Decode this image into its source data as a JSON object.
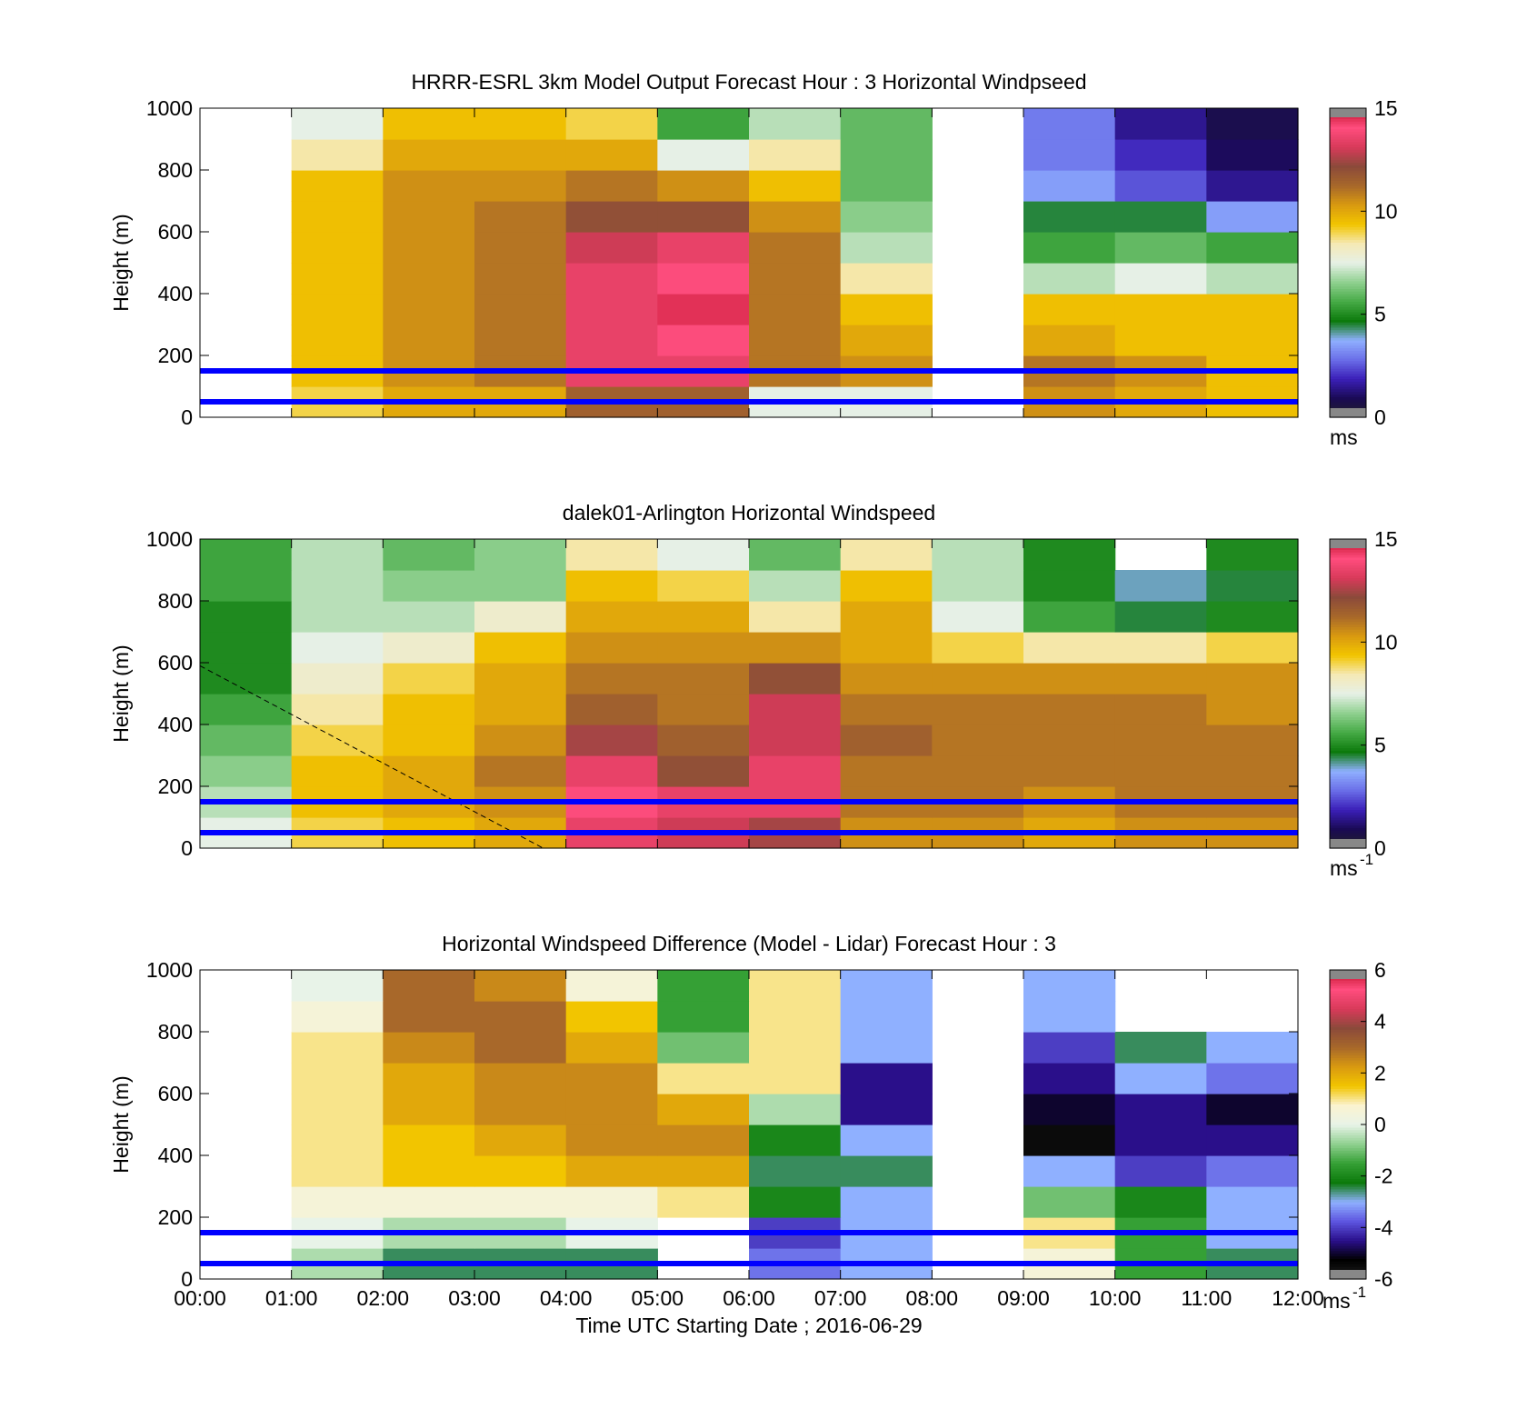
{
  "figure": {
    "xlabel": "Time UTC  Starting Date ; 2016-06-29",
    "x_tick_labels": [
      "00:00",
      "01:00",
      "02:00",
      "03:00",
      "04:00",
      "05:00",
      "06:00",
      "07:00",
      "08:00",
      "09:00",
      "10:00",
      "11:00",
      "12:00"
    ]
  },
  "colors": {
    "reference_lines": "#0000ff",
    "colorbar_speed": [
      "#222222",
      "#1a0a55",
      "#3b1fb8",
      "#6a6ee8",
      "#8fb0ff",
      "#0c7a0c",
      "#46aa46",
      "#8fd08f",
      "#e6f0e6",
      "#f5e9b5",
      "#f2c500",
      "#d99a10",
      "#a8682a",
      "#8b4a3a",
      "#d83a5a",
      "#ff4d7e",
      "#c0102a"
    ],
    "colorbar_diff": [
      "#222222",
      "#000000",
      "#2a0f8a",
      "#5d55e0",
      "#8fb0ff",
      "#0c7a0c",
      "#35a035",
      "#8fd08f",
      "#e8f3e8",
      "#fbf3d0",
      "#f2c500",
      "#d99a10",
      "#a8682a",
      "#8b4a3a",
      "#d83a5a",
      "#ff4d7e",
      "#c0102a"
    ]
  },
  "panels": [
    {
      "title": "HRRR-ESRL 3km Model Output   Forecast Hour : 3 Horizontal Windpseed",
      "ylabel": "Height (m)",
      "y_ticks": [
        "0",
        "200",
        "400",
        "600",
        "800",
        "1000"
      ],
      "cbar_ticks": [
        "0",
        "5",
        "10",
        "15"
      ],
      "cbar_unit": "ms",
      "cbar_exp": ""
    },
    {
      "title": "dalek01-Arlington  Horizontal Windspeed",
      "ylabel": "Height (m)",
      "y_ticks": [
        "0",
        "200",
        "400",
        "600",
        "800",
        "1000"
      ],
      "cbar_ticks": [
        "0",
        "5",
        "10",
        "15"
      ],
      "cbar_unit": "ms",
      "cbar_exp": "-1"
    },
    {
      "title": "Horizontal Windspeed Difference (Model - Lidar) Forecast Hour : 3",
      "ylabel": "Height (m)",
      "y_ticks": [
        "0",
        "200",
        "400",
        "600",
        "800",
        "1000"
      ],
      "cbar_ticks": [
        "-6",
        "-4",
        "-2",
        "0",
        "2",
        "4",
        "6"
      ],
      "cbar_unit": "ms",
      "cbar_exp": "-1"
    }
  ],
  "chart_data": [
    {
      "type": "heatmap",
      "title": "HRRR-ESRL 3km Model Output   Forecast Hour : 3 Horizontal Windpseed",
      "ylabel": "Height (m)",
      "xlim": [
        "00:00",
        "12:00"
      ],
      "ylim": [
        0,
        1000
      ],
      "clim": [
        0,
        15
      ],
      "x_hours": [
        0.5,
        1.5,
        2.5,
        3.5,
        4.5,
        5.5,
        6.5,
        7.5,
        8.5,
        9.5,
        10.5,
        11.5
      ],
      "heights": [
        50,
        150,
        250,
        350,
        450,
        550,
        650,
        750,
        850,
        950
      ],
      "values": [
        [
          null,
          9.0,
          10.0,
          10.0,
          11.5,
          11.5,
          7.5,
          7.5,
          null,
          10.5,
          10.0,
          9.5
        ],
        [
          null,
          9.5,
          10.5,
          11.0,
          13.5,
          13.5,
          11.0,
          10.5,
          null,
          11.0,
          10.5,
          9.5
        ],
        [
          null,
          9.5,
          10.5,
          11.0,
          13.5,
          14.0,
          11.0,
          10.0,
          null,
          10.0,
          9.5,
          9.5
        ],
        [
          null,
          9.5,
          10.5,
          11.0,
          13.5,
          14.5,
          11.0,
          9.5,
          null,
          9.5,
          9.5,
          9.5
        ],
        [
          null,
          9.5,
          10.5,
          11.0,
          13.5,
          14.0,
          11.0,
          8.5,
          null,
          7.0,
          7.5,
          7.0
        ],
        [
          null,
          9.5,
          10.5,
          11.0,
          13.0,
          13.5,
          11.0,
          7.0,
          null,
          5.5,
          6.0,
          5.5
        ],
        [
          null,
          9.5,
          10.5,
          11.0,
          12.0,
          12.0,
          10.5,
          6.5,
          null,
          4.5,
          4.5,
          3.5
        ],
        [
          null,
          9.5,
          10.5,
          10.5,
          11.0,
          10.5,
          9.5,
          6.0,
          null,
          3.5,
          2.5,
          1.5
        ],
        [
          null,
          8.5,
          10.0,
          10.0,
          10.0,
          7.5,
          8.5,
          6.0,
          null,
          3.0,
          2.0,
          1.0
        ],
        [
          null,
          7.5,
          9.5,
          9.5,
          9.0,
          5.5,
          7.0,
          6.0,
          null,
          3.0,
          1.5,
          0.8
        ]
      ],
      "hlines": [
        50,
        150
      ]
    },
    {
      "type": "heatmap",
      "title": "dalek01-Arlington  Horizontal Windspeed",
      "ylabel": "Height (m)",
      "xlim": [
        "00:00",
        "12:00"
      ],
      "ylim": [
        0,
        1000
      ],
      "clim": [
        0,
        15
      ],
      "x_hours": [
        0.5,
        1.5,
        2.5,
        3.5,
        4.5,
        5.5,
        6.5,
        7.5,
        8.5,
        9.5,
        10.5,
        11.5
      ],
      "heights": [
        50,
        150,
        250,
        350,
        450,
        550,
        650,
        750,
        850,
        950
      ],
      "values": [
        [
          7.5,
          9.0,
          9.5,
          10.0,
          13.5,
          13.0,
          12.5,
          10.5,
          10.5,
          10.0,
          10.5,
          10.5
        ],
        [
          7.0,
          9.5,
          10.0,
          10.5,
          14.0,
          13.5,
          13.5,
          11.0,
          11.0,
          10.5,
          11.0,
          11.0
        ],
        [
          6.5,
          9.5,
          10.0,
          11.0,
          13.5,
          12.0,
          13.5,
          11.0,
          11.0,
          11.0,
          11.0,
          11.0
        ],
        [
          6.0,
          9.0,
          9.5,
          10.5,
          12.5,
          11.5,
          13.0,
          11.5,
          11.0,
          11.0,
          11.0,
          11.0
        ],
        [
          5.5,
          8.5,
          9.5,
          10.0,
          11.5,
          11.0,
          13.0,
          11.0,
          11.0,
          11.0,
          11.0,
          10.5
        ],
        [
          5.0,
          8.0,
          9.0,
          10.0,
          11.0,
          11.0,
          12.0,
          10.5,
          10.5,
          10.5,
          10.5,
          10.5
        ],
        [
          5.0,
          7.5,
          8.0,
          9.5,
          10.5,
          10.5,
          10.5,
          10.0,
          9.0,
          8.5,
          8.5,
          9.0
        ],
        [
          5.0,
          7.0,
          7.0,
          8.0,
          10.0,
          10.0,
          8.5,
          10.0,
          7.5,
          5.5,
          4.5,
          5.0
        ],
        [
          5.5,
          7.0,
          6.5,
          6.5,
          9.5,
          9.0,
          7.0,
          9.5,
          7.0,
          5.0,
          4.0,
          4.5
        ],
        [
          5.5,
          7.0,
          6.0,
          6.5,
          8.5,
          7.5,
          6.0,
          8.5,
          7.0,
          5.0,
          null,
          5.0
        ]
      ],
      "hlines": [
        50,
        150
      ],
      "dashed_line": {
        "from": [
          0,
          590
        ],
        "to": [
          3.75,
          0
        ]
      }
    },
    {
      "type": "heatmap",
      "title": "Horizontal Windspeed Difference (Model - Lidar) Forecast Hour : 3",
      "xlabel": "Time UTC  Starting Date ; 2016-06-29",
      "ylabel": "Height (m)",
      "xlim": [
        "00:00",
        "12:00"
      ],
      "ylim": [
        0,
        1000
      ],
      "clim": [
        -6,
        6
      ],
      "x_hours": [
        0.5,
        1.5,
        2.5,
        3.5,
        4.5,
        5.5,
        6.5,
        7.5,
        8.5,
        9.5,
        10.5,
        11.5
      ],
      "heights": [
        50,
        150,
        250,
        350,
        450,
        550,
        650,
        750,
        850,
        950
      ],
      "values": [
        [
          null,
          -0.5,
          -2.5,
          -2.5,
          -2.5,
          null,
          -3.5,
          -3.0,
          null,
          0.5,
          -1.5,
          -2.5
        ],
        [
          null,
          0.0,
          -0.5,
          -0.5,
          0.0,
          null,
          -4.0,
          -3.0,
          null,
          1.0,
          -1.5,
          -3.0
        ],
        [
          null,
          0.5,
          0.5,
          0.5,
          0.5,
          1.0,
          -2.0,
          -3.0,
          null,
          -1.0,
          -2.0,
          -3.0
        ],
        [
          null,
          1.0,
          1.5,
          1.5,
          2.0,
          2.0,
          -2.5,
          -2.5,
          null,
          -3.0,
          -4.0,
          -3.5
        ],
        [
          null,
          1.0,
          1.5,
          2.0,
          2.5,
          2.5,
          -2.0,
          -3.0,
          null,
          -5.5,
          -4.5,
          -4.5
        ],
        [
          null,
          1.0,
          2.0,
          2.5,
          2.5,
          2.0,
          -0.5,
          -4.5,
          null,
          -5.0,
          -4.5,
          -5.0
        ],
        [
          null,
          1.0,
          2.0,
          2.5,
          2.5,
          1.0,
          1.0,
          -4.5,
          null,
          -4.5,
          -3.0,
          -3.5
        ],
        [
          null,
          1.0,
          2.5,
          3.0,
          2.0,
          -1.0,
          1.0,
          -3.0,
          null,
          -4.0,
          -2.5,
          -3.0
        ],
        [
          null,
          0.5,
          3.0,
          3.0,
          1.5,
          -1.5,
          1.0,
          -3.0,
          null,
          -3.0,
          null,
          null
        ],
        [
          null,
          0.0,
          3.0,
          2.5,
          0.5,
          -1.5,
          1.0,
          -3.0,
          null,
          -3.0,
          null,
          null
        ]
      ],
      "hlines": [
        50,
        150
      ]
    }
  ]
}
